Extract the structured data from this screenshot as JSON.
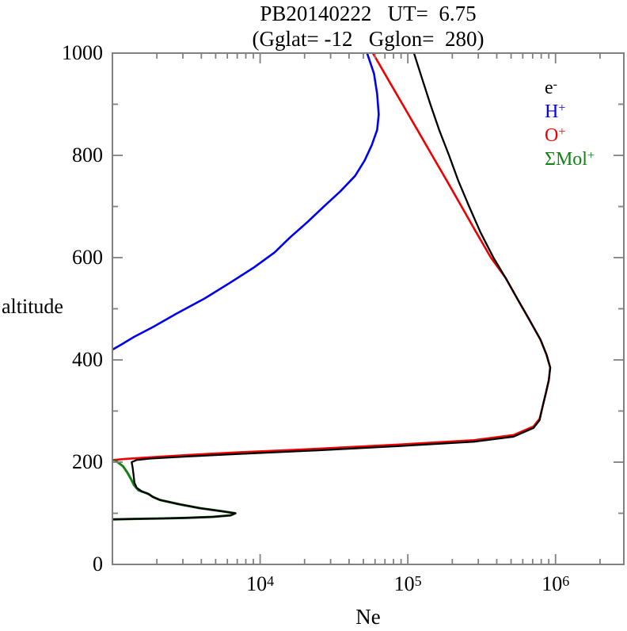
{
  "title": {
    "line1": "PB20140222   UT=  6.75",
    "line2": "(Gglat= -12   Gglon=  280)"
  },
  "axes": {
    "x": {
      "label": "Ne",
      "scale": "log",
      "min": 1000,
      "max": 2900000,
      "major_ticks": [
        {
          "value": 10000,
          "base": "10",
          "exp": "4"
        },
        {
          "value": 100000,
          "base": "10",
          "exp": "5"
        },
        {
          "value": 1000000,
          "base": "10",
          "exp": "6"
        }
      ],
      "minor_ticks": [
        2000,
        3000,
        4000,
        5000,
        6000,
        7000,
        8000,
        9000,
        20000,
        30000,
        40000,
        50000,
        60000,
        70000,
        80000,
        90000,
        200000,
        300000,
        400000,
        500000,
        600000,
        700000,
        800000,
        900000,
        2000000
      ]
    },
    "y": {
      "label": "altitude",
      "min": 0,
      "max": 1000,
      "major_ticks": [
        {
          "value": 1000,
          "label": "1000"
        },
        {
          "value": 800,
          "label": "800"
        },
        {
          "value": 600,
          "label": "600"
        },
        {
          "value": 400,
          "label": "400"
        },
        {
          "value": 200,
          "label": "200"
        },
        {
          "value": 0,
          "label": "0"
        }
      ],
      "minor_ticks": [
        100,
        300,
        500,
        700,
        900
      ]
    }
  },
  "legend": {
    "items": [
      {
        "base": "e",
        "sup": "-",
        "color": "#000000"
      },
      {
        "base": "H",
        "sup": "+",
        "color": "#0000ee"
      },
      {
        "base": "O",
        "sup": "+",
        "color": "#ee0000"
      },
      {
        "base": "ΣMol",
        "sup": "+",
        "color": "#148214"
      }
    ]
  },
  "colors": {
    "axis": "#808080",
    "background": "#ffffff",
    "electron": "#000000",
    "h_plus": "#0000ee",
    "o_plus": "#ee0000",
    "mol_plus": "#148214"
  },
  "chart_data": {
    "type": "line",
    "title": "PB20140222  UT= 6.75 (Gglat= -12  Gglon= 280)",
    "xlabel": "Ne",
    "ylabel": "altitude",
    "x_scale": "log",
    "xlim": [
      1000,
      2900000
    ],
    "ylim": [
      0,
      1000
    ],
    "grid": false,
    "legend_position": "upper right",
    "point_format": [
      "altitude_km",
      "density_cm3"
    ],
    "series": [
      {
        "name": "e-",
        "color": "#000000",
        "points": [
          [
            1000,
            110000
          ],
          [
            950,
            125000
          ],
          [
            900,
            142000
          ],
          [
            850,
            163000
          ],
          [
            800,
            190000
          ],
          [
            750,
            220000
          ],
          [
            700,
            260000
          ],
          [
            650,
            310000
          ],
          [
            600,
            380000
          ],
          [
            560,
            460000
          ],
          [
            520,
            550000
          ],
          [
            480,
            660000
          ],
          [
            440,
            790000
          ],
          [
            410,
            870000
          ],
          [
            385,
            920000
          ],
          [
            360,
            900000
          ],
          [
            335,
            860000
          ],
          [
            310,
            820000
          ],
          [
            282,
            780000
          ],
          [
            267,
            710000
          ],
          [
            250,
            520000
          ],
          [
            240,
            280000
          ],
          [
            231,
            82000
          ],
          [
            223,
            24000
          ],
          [
            216,
            7000
          ],
          [
            211,
            3200
          ],
          [
            207,
            1800
          ],
          [
            204,
            1450
          ],
          [
            200,
            1350
          ],
          [
            190,
            1370
          ],
          [
            175,
            1390
          ],
          [
            160,
            1410
          ],
          [
            150,
            1460
          ],
          [
            143,
            1580
          ],
          [
            138,
            1750
          ],
          [
            132,
            1880
          ],
          [
            126,
            2100
          ],
          [
            118,
            2800
          ],
          [
            110,
            3900
          ],
          [
            104,
            5500
          ],
          [
            100,
            6800
          ],
          [
            96,
            6300
          ],
          [
            93,
            4800
          ],
          [
            91,
            3200
          ],
          [
            90,
            2200
          ],
          [
            89,
            1400
          ],
          [
            88,
            1000
          ]
        ]
      },
      {
        "name": "H+",
        "color": "#0000ee",
        "points": [
          [
            1000,
            53000
          ],
          [
            960,
            59000
          ],
          [
            920,
            62000
          ],
          [
            880,
            63500
          ],
          [
            850,
            62000
          ],
          [
            820,
            57000
          ],
          [
            790,
            51000
          ],
          [
            760,
            44000
          ],
          [
            730,
            35000
          ],
          [
            700,
            27000
          ],
          [
            670,
            21000
          ],
          [
            640,
            16000
          ],
          [
            610,
            12500
          ],
          [
            580,
            9000
          ],
          [
            550,
            6200
          ],
          [
            520,
            4200
          ],
          [
            490,
            2700
          ],
          [
            465,
            1900
          ],
          [
            445,
            1400
          ],
          [
            430,
            1150
          ],
          [
            420,
            1000
          ]
        ]
      },
      {
        "name": "O+",
        "color": "#ee0000",
        "points": [
          [
            1000,
            58000
          ],
          [
            950,
            73000
          ],
          [
            900,
            92000
          ],
          [
            850,
            116000
          ],
          [
            800,
            146000
          ],
          [
            750,
            184000
          ],
          [
            700,
            231000
          ],
          [
            650,
            290000
          ],
          [
            600,
            365000
          ],
          [
            560,
            460000
          ],
          [
            520,
            550000
          ],
          [
            480,
            660000
          ],
          [
            440,
            790000
          ],
          [
            410,
            870000
          ],
          [
            385,
            920000
          ],
          [
            360,
            900000
          ],
          [
            335,
            860000
          ],
          [
            310,
            820000
          ],
          [
            285,
            780000
          ],
          [
            270,
            710000
          ],
          [
            253,
            520000
          ],
          [
            243,
            280000
          ],
          [
            234,
            82000
          ],
          [
            226,
            24000
          ],
          [
            219,
            7000
          ],
          [
            214,
            3200
          ],
          [
            209,
            1700
          ],
          [
            206,
            1200
          ],
          [
            204,
            1000
          ]
        ]
      },
      {
        "name": "ΣMol+",
        "color": "#148214",
        "points": [
          [
            203,
            1050
          ],
          [
            192,
            1180
          ],
          [
            180,
            1260
          ],
          [
            168,
            1330
          ],
          [
            155,
            1400
          ],
          [
            145,
            1500
          ],
          [
            138,
            1750
          ],
          [
            132,
            1880
          ],
          [
            126,
            2100
          ],
          [
            118,
            2800
          ],
          [
            110,
            3900
          ],
          [
            104,
            5500
          ],
          [
            100,
            6800
          ],
          [
            96,
            6300
          ],
          [
            93,
            4800
          ],
          [
            91,
            3200
          ],
          [
            90,
            2200
          ],
          [
            89,
            1400
          ],
          [
            88,
            1000
          ]
        ]
      }
    ],
    "annotations": {
      "f2_peak": {
        "altitude_km": 385,
        "density_cm3": 920000
      },
      "e_peak": {
        "altitude_km": 100,
        "density_cm3": 6800
      }
    }
  }
}
